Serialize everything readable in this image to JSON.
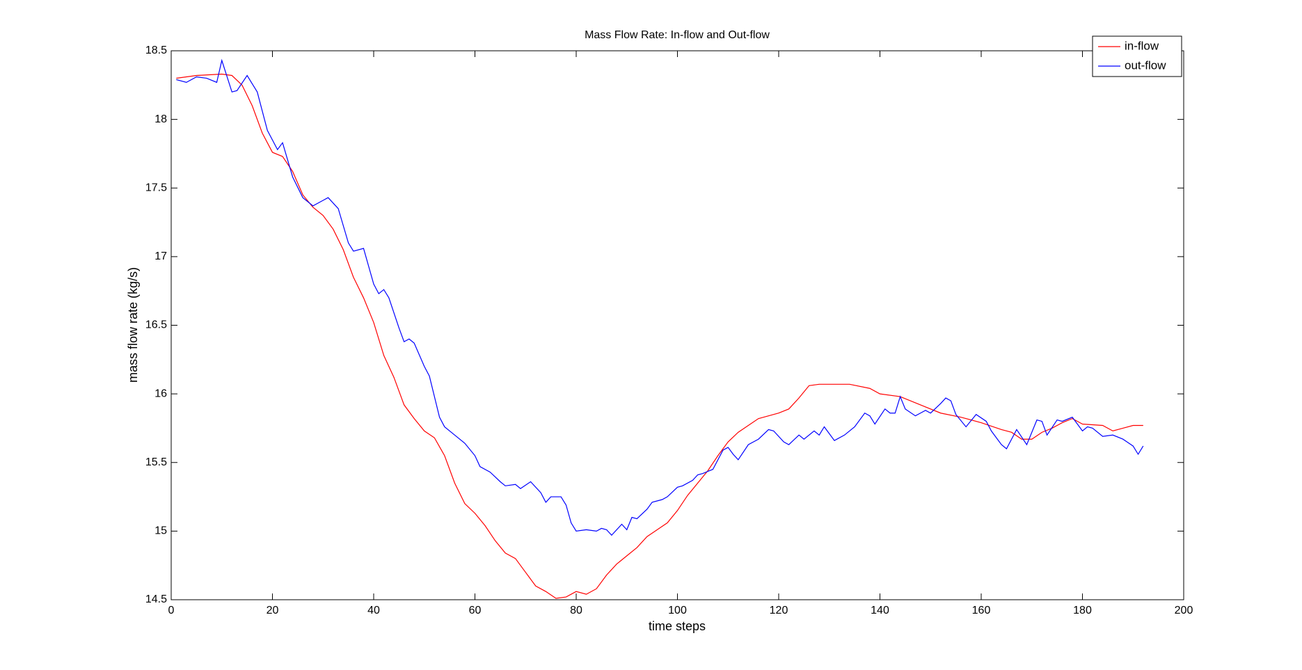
{
  "chart_data": {
    "type": "line",
    "title": "Mass Flow Rate: In-flow and Out-flow",
    "x_label": "time steps",
    "y_label": "mass flow rate (kg/s)",
    "xlim": [
      0,
      200
    ],
    "xticks": [
      0,
      20,
      40,
      60,
      80,
      100,
      120,
      140,
      160,
      180,
      200
    ],
    "ylim": [
      14.5,
      18.5
    ],
    "yticks": [
      14.5,
      15,
      15.5,
      16,
      16.5,
      17,
      17.5,
      18,
      18.5
    ],
    "legend_position": "upper right",
    "series": [
      {
        "name": "in-flow",
        "color": "#ff0000",
        "x": [
          1,
          5,
          10,
          12,
          14,
          16,
          18,
          20,
          22,
          24,
          26,
          28,
          30,
          32,
          34,
          36,
          38,
          40,
          42,
          44,
          46,
          48,
          50,
          52,
          54,
          56,
          58,
          60,
          62,
          64,
          66,
          68,
          70,
          72,
          74,
          76,
          78,
          80,
          82,
          84,
          86,
          88,
          90,
          92,
          94,
          96,
          98,
          100,
          102,
          104,
          106,
          108,
          110,
          112,
          114,
          116,
          118,
          120,
          122,
          124,
          126,
          128,
          130,
          134,
          138,
          140,
          144,
          148,
          152,
          156,
          160,
          164,
          166,
          168,
          170,
          172,
          174,
          176,
          178,
          180,
          184,
          186,
          188,
          190,
          192
        ],
        "values": [
          18.3,
          18.32,
          18.33,
          18.32,
          18.25,
          18.1,
          17.9,
          17.76,
          17.73,
          17.62,
          17.45,
          17.36,
          17.3,
          17.2,
          17.05,
          16.85,
          16.7,
          16.52,
          16.28,
          16.12,
          15.92,
          15.82,
          15.73,
          15.68,
          15.55,
          15.35,
          15.2,
          15.13,
          15.04,
          14.93,
          14.84,
          14.8,
          14.7,
          14.6,
          14.56,
          14.51,
          14.52,
          14.56,
          14.54,
          14.58,
          14.68,
          14.76,
          14.82,
          14.88,
          14.96,
          15.01,
          15.06,
          15.15,
          15.26,
          15.35,
          15.44,
          15.55,
          15.65,
          15.72,
          15.77,
          15.82,
          15.84,
          15.86,
          15.89,
          15.97,
          16.06,
          16.07,
          16.07,
          16.07,
          16.04,
          16.0,
          15.98,
          15.92,
          15.86,
          15.83,
          15.79,
          15.74,
          15.72,
          15.67,
          15.67,
          15.72,
          15.75,
          15.79,
          15.82,
          15.78,
          15.77,
          15.73,
          15.75,
          15.77,
          15.77
        ]
      },
      {
        "name": "out-flow",
        "color": "#0000ff",
        "x": [
          1,
          3,
          5,
          7,
          9,
          10,
          12,
          13,
          15,
          17,
          19,
          21,
          22,
          24,
          26,
          28,
          30,
          31,
          33,
          35,
          36,
          38,
          40,
          41,
          42,
          43,
          45,
          46,
          47,
          48,
          50,
          51,
          53,
          54,
          56,
          58,
          60,
          61,
          63,
          65,
          66,
          68,
          69,
          71,
          73,
          74,
          75,
          77,
          78,
          79,
          80,
          82,
          84,
          85,
          86,
          87,
          89,
          90,
          91,
          92,
          94,
          95,
          97,
          98,
          100,
          101,
          103,
          104,
          105,
          107,
          109,
          110,
          111,
          112,
          114,
          116,
          118,
          119,
          121,
          122,
          124,
          125,
          127,
          128,
          129,
          131,
          133,
          135,
          137,
          138,
          139,
          141,
          142,
          143,
          144,
          145,
          147,
          148,
          149,
          150,
          152,
          153,
          154,
          155,
          157,
          159,
          161,
          162,
          164,
          165,
          167,
          169,
          171,
          172,
          173,
          175,
          176,
          178,
          180,
          181,
          182,
          184,
          186,
          188,
          190,
          191,
          192
        ],
        "values": [
          18.29,
          18.27,
          18.31,
          18.3,
          18.27,
          18.43,
          18.2,
          18.21,
          18.32,
          18.2,
          17.92,
          17.78,
          17.83,
          17.58,
          17.43,
          17.37,
          17.41,
          17.43,
          17.35,
          17.1,
          17.04,
          17.06,
          16.8,
          16.73,
          16.76,
          16.7,
          16.48,
          16.38,
          16.4,
          16.37,
          16.2,
          16.13,
          15.83,
          15.76,
          15.7,
          15.64,
          15.55,
          15.47,
          15.43,
          15.36,
          15.33,
          15.34,
          15.31,
          15.36,
          15.28,
          15.21,
          15.25,
          15.25,
          15.19,
          15.06,
          15.0,
          15.01,
          15.0,
          15.02,
          15.01,
          14.97,
          15.05,
          15.01,
          15.1,
          15.09,
          15.16,
          15.21,
          15.23,
          15.25,
          15.32,
          15.33,
          15.37,
          15.41,
          15.42,
          15.45,
          15.59,
          15.61,
          15.56,
          15.52,
          15.63,
          15.67,
          15.74,
          15.73,
          15.65,
          15.63,
          15.7,
          15.67,
          15.73,
          15.7,
          15.76,
          15.66,
          15.7,
          15.76,
          15.86,
          15.84,
          15.78,
          15.89,
          15.86,
          15.86,
          15.98,
          15.89,
          15.84,
          15.86,
          15.88,
          15.86,
          15.93,
          15.97,
          15.95,
          15.85,
          15.76,
          15.85,
          15.8,
          15.73,
          15.63,
          15.6,
          15.74,
          15.63,
          15.81,
          15.8,
          15.7,
          15.81,
          15.8,
          15.83,
          15.73,
          15.76,
          15.75,
          15.69,
          15.7,
          15.67,
          15.62,
          15.56,
          15.62
        ]
      }
    ]
  }
}
